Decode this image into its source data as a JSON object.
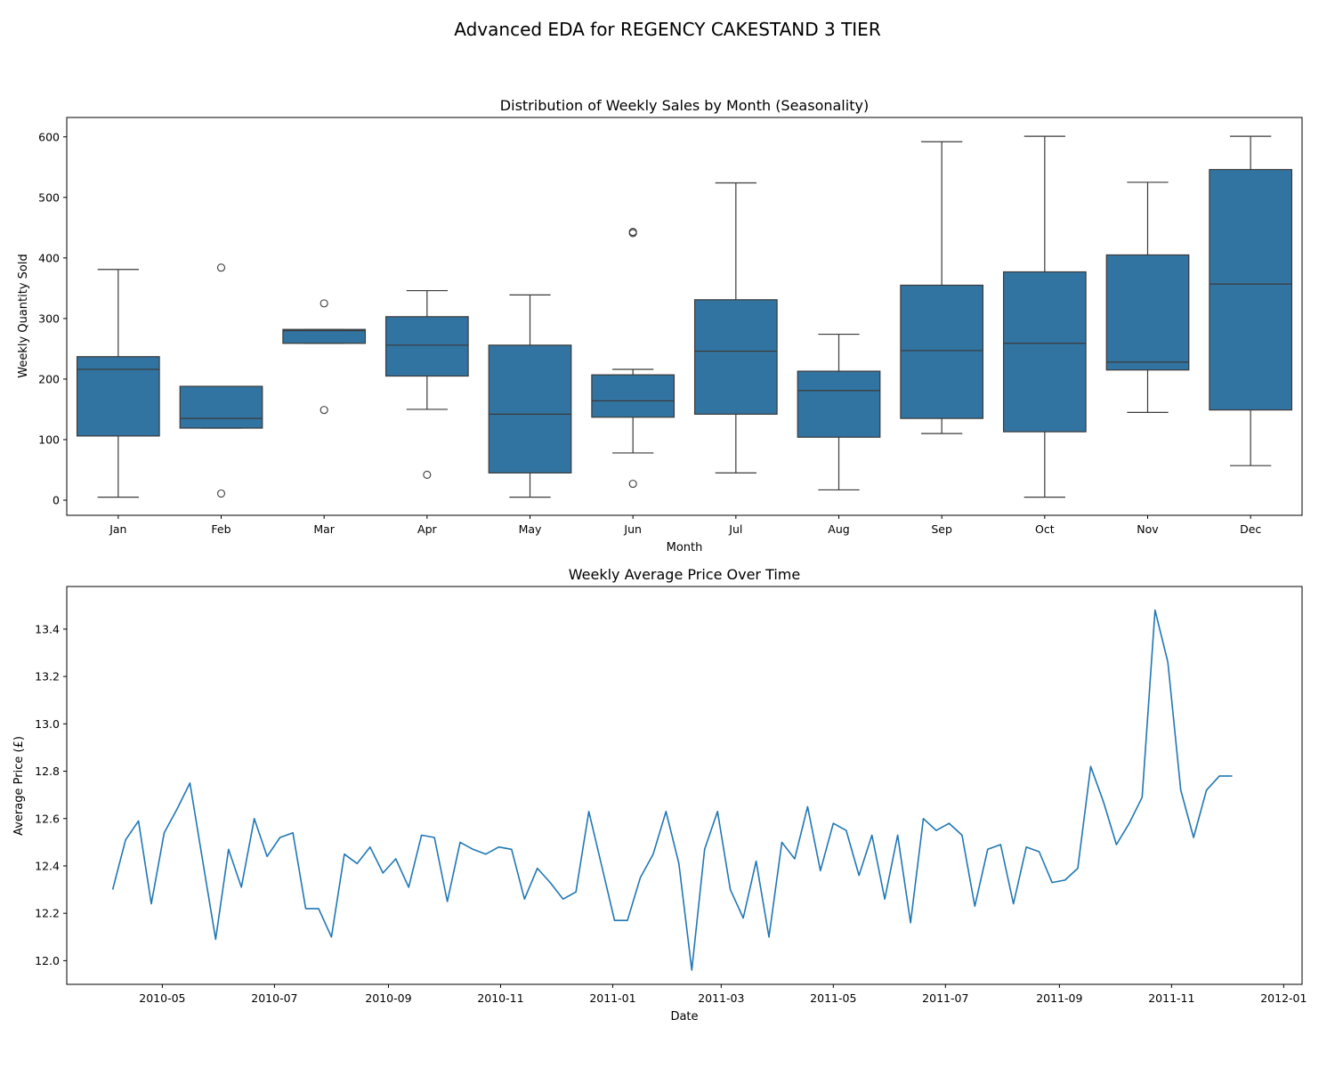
{
  "figure": {
    "title": "Advanced EDA for REGENCY CAKESTAND 3 TIER"
  },
  "colors": {
    "box": "#3274a1",
    "line": "#1f77b4",
    "edge": "#3a3a3a"
  },
  "chart_data": [
    {
      "type": "box",
      "title": "Distribution of Weekly Sales by Month (Seasonality)",
      "xlabel": "Month",
      "ylabel": "Weekly Quantity Sold",
      "ylim": [
        -25,
        632
      ],
      "yticks": [
        0,
        100,
        200,
        300,
        400,
        500,
        600
      ],
      "categories": [
        "Jan",
        "Feb",
        "Mar",
        "Apr",
        "May",
        "Jun",
        "Jul",
        "Aug",
        "Sep",
        "Oct",
        "Nov",
        "Dec"
      ],
      "boxes": [
        {
          "whislo": 5,
          "q1": 106,
          "med": 216,
          "q3": 237,
          "whishi": 381,
          "fliers": []
        },
        {
          "whislo": 119,
          "q1": 119,
          "med": 135,
          "q3": 188,
          "whishi": 188,
          "fliers": [
            11,
            384
          ]
        },
        {
          "whislo": 259,
          "q1": 259,
          "med": 280,
          "q3": 282,
          "whishi": 282,
          "fliers": [
            149,
            325
          ]
        },
        {
          "whislo": 150,
          "q1": 205,
          "med": 256,
          "q3": 303,
          "whishi": 346,
          "fliers": [
            42
          ]
        },
        {
          "whislo": 5,
          "q1": 45,
          "med": 142,
          "q3": 256,
          "whishi": 339,
          "fliers": []
        },
        {
          "whislo": 78,
          "q1": 137,
          "med": 164,
          "q3": 207,
          "whishi": 216,
          "fliers": [
            27,
            441,
            443
          ]
        },
        {
          "whislo": 45,
          "q1": 142,
          "med": 246,
          "q3": 331,
          "whishi": 524,
          "fliers": []
        },
        {
          "whislo": 17,
          "q1": 104,
          "med": 181,
          "q3": 213,
          "whishi": 274,
          "fliers": []
        },
        {
          "whislo": 110,
          "q1": 135,
          "med": 247,
          "q3": 355,
          "whishi": 592,
          "fliers": []
        },
        {
          "whislo": 5,
          "q1": 113,
          "med": 259,
          "q3": 377,
          "whishi": 601,
          "fliers": []
        },
        {
          "whislo": 145,
          "q1": 215,
          "med": 228,
          "q3": 405,
          "whishi": 525,
          "fliers": []
        },
        {
          "whislo": 57,
          "q1": 149,
          "med": 357,
          "q3": 546,
          "whishi": 601,
          "fliers": []
        }
      ]
    },
    {
      "type": "line",
      "title": "Weekly Average Price Over Time",
      "xlabel": "Date",
      "ylabel": "Average Price (£)",
      "ylim": [
        11.9,
        13.58
      ],
      "yticks": [
        "12.0",
        "12.2",
        "12.4",
        "12.6",
        "12.8",
        "13.0",
        "13.2",
        "13.4"
      ],
      "xlim": [
        "2010-03-10",
        "2012-01-11"
      ],
      "xticks": [
        "2010-05",
        "2010-07",
        "2010-09",
        "2010-11",
        "2011-01",
        "2011-03",
        "2011-05",
        "2011-07",
        "2011-09",
        "2011-11",
        "2012-01"
      ],
      "series": [
        {
          "start_date": "2010-04-04",
          "step_days": 7,
          "values": [
            12.3,
            12.51,
            12.59,
            12.24,
            12.54,
            12.64,
            12.75,
            12.42,
            12.09,
            12.47,
            12.31,
            12.6,
            12.44,
            12.52,
            12.54,
            12.22,
            12.22,
            12.1,
            12.45,
            12.41,
            12.48,
            12.37,
            12.43,
            12.31,
            12.53,
            12.52,
            12.25,
            12.5,
            12.47,
            12.45,
            12.48,
            12.47,
            12.26,
            12.39,
            12.33,
            12.26,
            12.29,
            12.63,
            12.4,
            12.17,
            12.17,
            12.35,
            12.45,
            12.63,
            12.41,
            11.96,
            12.47,
            12.63,
            12.3,
            12.18,
            12.42,
            12.1,
            12.5,
            12.43,
            12.65,
            12.38,
            12.58,
            12.55,
            12.36,
            12.53,
            12.26,
            12.53,
            12.16,
            12.6,
            12.55,
            12.58,
            12.53,
            12.23,
            12.47,
            12.49,
            12.24,
            12.48,
            12.46,
            12.33,
            12.34,
            12.39,
            12.82,
            12.67,
            12.49,
            12.58,
            12.69,
            13.48,
            13.26,
            12.72,
            12.52,
            12.72,
            12.78,
            12.78
          ]
        }
      ]
    }
  ]
}
